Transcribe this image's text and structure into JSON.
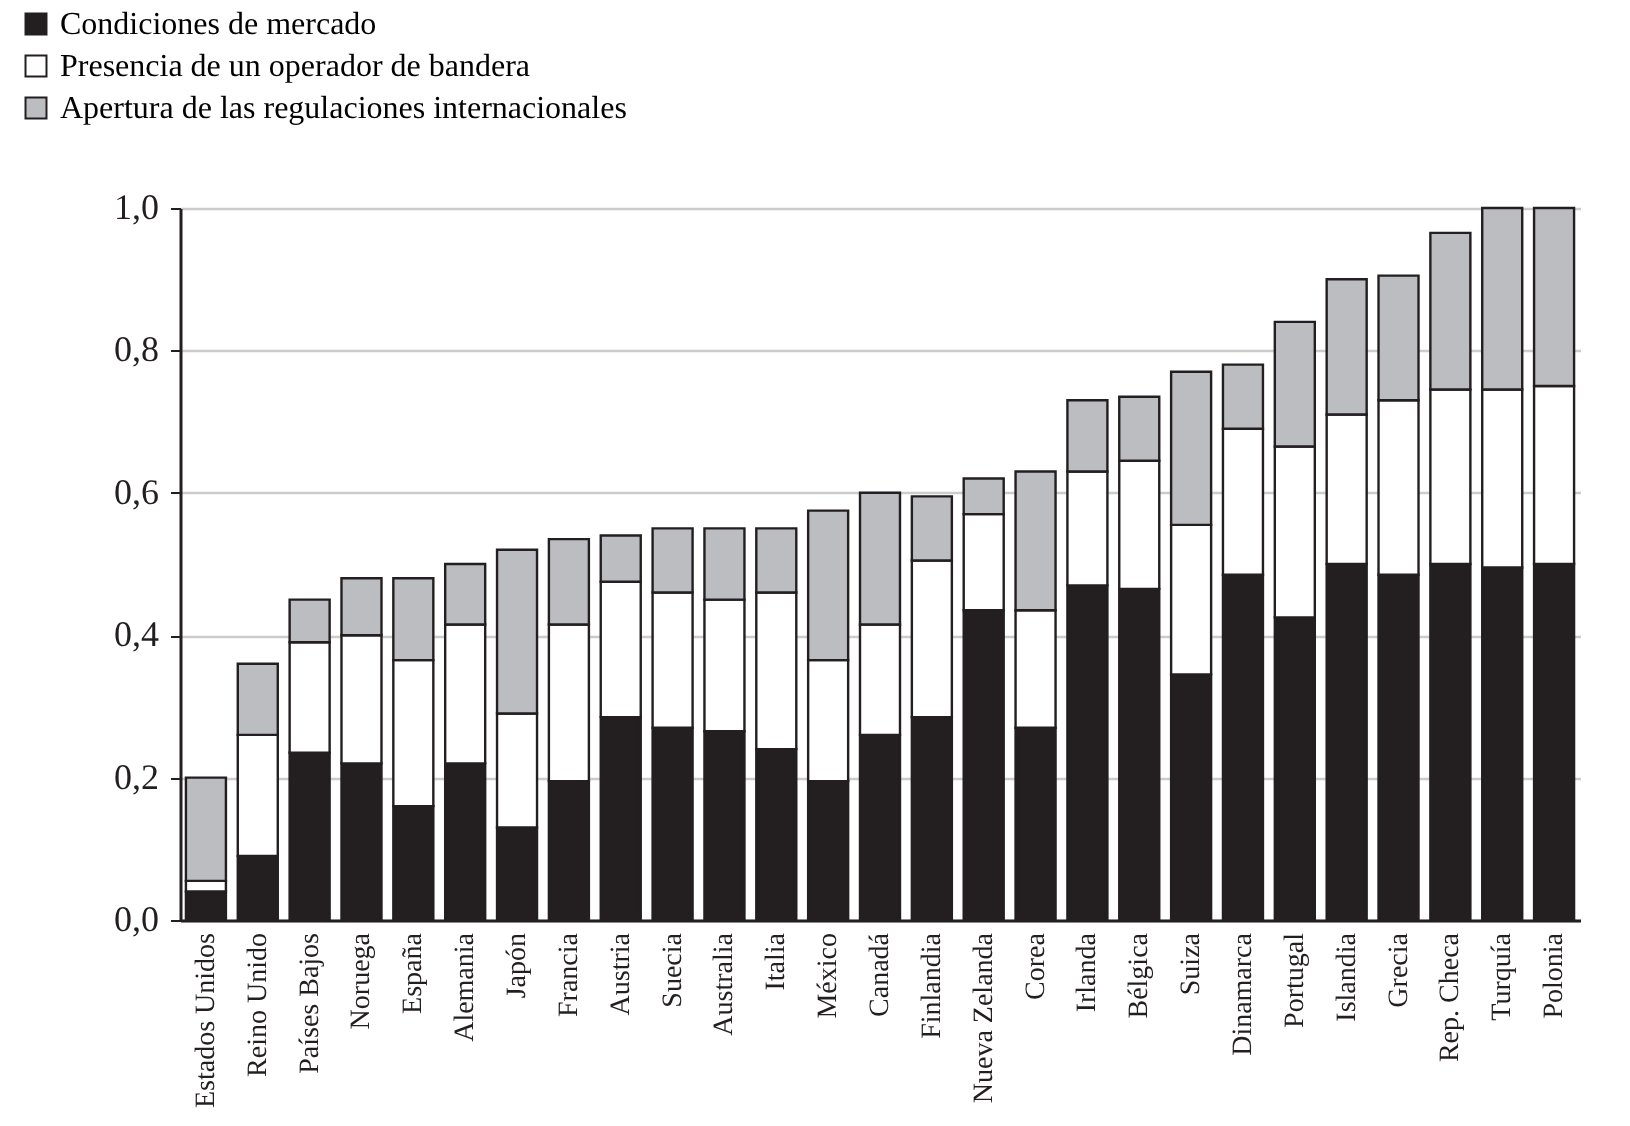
{
  "chart_data": {
    "type": "bar",
    "stacked": true,
    "categories": [
      "Estados Unidos",
      "Reino Unido",
      "Países Bajos",
      "Noruega",
      "España",
      "Alemania",
      "Japón",
      "Francia",
      "Austria",
      "Suecia",
      "Australia",
      "Italia",
      "México",
      "Canadá",
      "Finlandia",
      "Nueva Zelanda",
      "Corea",
      "Irlanda",
      "Bélgica",
      "Suiza",
      "Dinamarca",
      "Portugal",
      "Islandia",
      "Grecia",
      "Rep. Checa",
      "Turquía",
      "Polonia"
    ],
    "series": [
      {
        "name": "Condiciones de mercado",
        "color": "#231f20",
        "values": [
          0.04,
          0.09,
          0.235,
          0.22,
          0.16,
          0.22,
          0.13,
          0.195,
          0.285,
          0.27,
          0.265,
          0.24,
          0.195,
          0.26,
          0.285,
          0.435,
          0.27,
          0.47,
          0.465,
          0.345,
          0.485,
          0.425,
          0.5,
          0.485,
          0.5,
          0.495,
          0.5
        ]
      },
      {
        "name": "Presencia de un operador de bandera",
        "color": "#ffffff",
        "values": [
          0.015,
          0.17,
          0.155,
          0.18,
          0.205,
          0.195,
          0.16,
          0.22,
          0.19,
          0.19,
          0.185,
          0.22,
          0.17,
          0.155,
          0.22,
          0.135,
          0.165,
          0.16,
          0.18,
          0.21,
          0.205,
          0.24,
          0.21,
          0.245,
          0.245,
          0.25,
          0.25
        ]
      },
      {
        "name": "Apertura de las regulaciones internacionales",
        "color": "#bcbdc0",
        "values": [
          0.145,
          0.1,
          0.06,
          0.08,
          0.115,
          0.085,
          0.23,
          0.12,
          0.065,
          0.09,
          0.1,
          0.09,
          0.21,
          0.185,
          0.09,
          0.05,
          0.195,
          0.1,
          0.09,
          0.215,
          0.09,
          0.175,
          0.19,
          0.175,
          0.22,
          0.255,
          0.25
        ]
      }
    ],
    "ylim": [
      0,
      1.0
    ],
    "yticks": [
      {
        "value": 0,
        "label": "0,0"
      },
      {
        "value": 0.2,
        "label": "0,2"
      },
      {
        "value": 0.4,
        "label": "0,4"
      },
      {
        "value": 0.6,
        "label": "0,6"
      },
      {
        "value": 0.8,
        "label": "0,8"
      },
      {
        "value": 1.0,
        "label": "1,0"
      }
    ],
    "grid": "y",
    "legend": "top left"
  }
}
